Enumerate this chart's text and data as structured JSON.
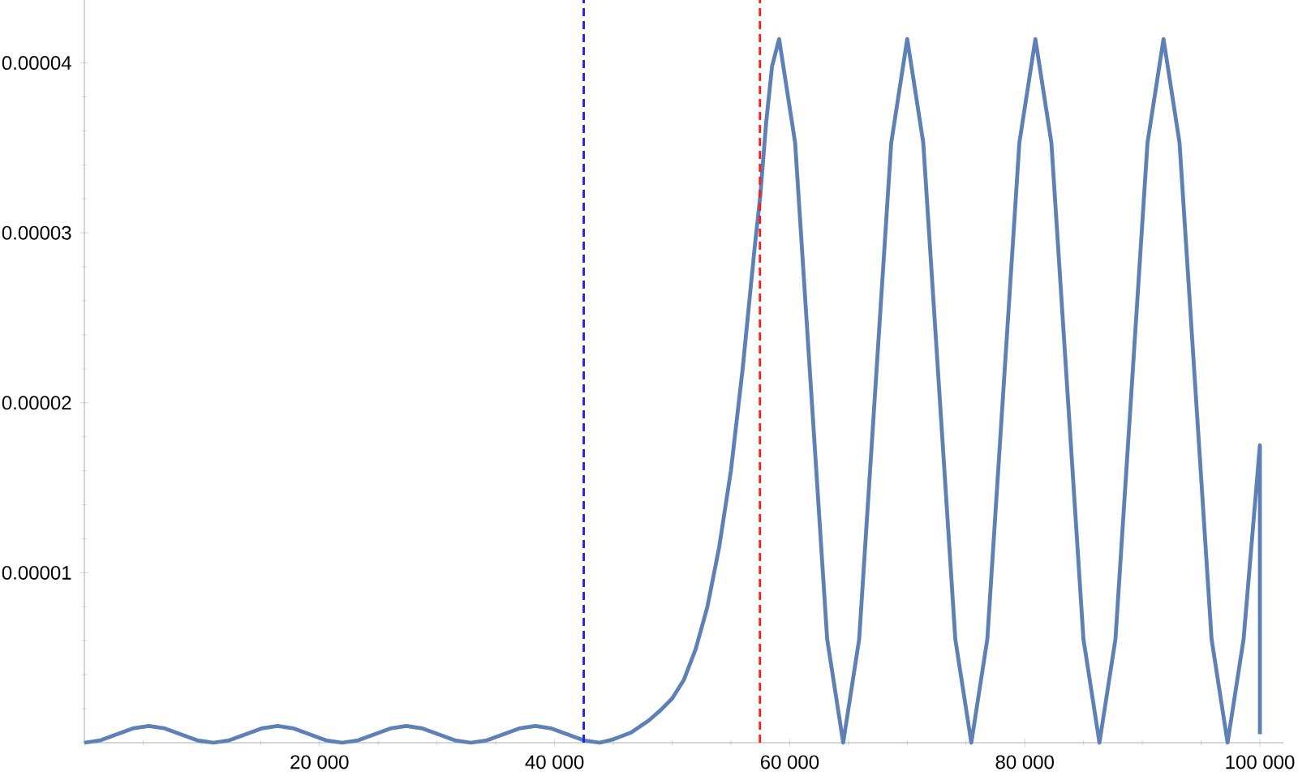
{
  "chart_data": {
    "type": "line",
    "xlim": [
      0,
      102000
    ],
    "ylim": [
      0,
      4.37e-05
    ],
    "xticks": [
      {
        "value": 0,
        "label": null
      },
      {
        "value": 20000,
        "label": "20 000"
      },
      {
        "value": 40000,
        "label": "40 000"
      },
      {
        "value": 60000,
        "label": "60 000"
      },
      {
        "value": 80000,
        "label": "80 000"
      },
      {
        "value": 100000,
        "label": "100 000"
      }
    ],
    "yticks": [
      {
        "value": 0,
        "label": null
      },
      {
        "value": 1e-05,
        "label": "0.00001"
      },
      {
        "value": 2e-05,
        "label": "0.00002"
      },
      {
        "value": 3e-05,
        "label": "0.00003"
      },
      {
        "value": 4e-05,
        "label": "0.00004"
      }
    ],
    "x": [
      0,
      1370,
      2740,
      4110,
      5480,
      6850,
      8220,
      9590,
      10960,
      12330,
      13700,
      15070,
      16440,
      17810,
      19180,
      20550,
      21920,
      23290,
      24660,
      26030,
      27400,
      28770,
      30140,
      31510,
      32880,
      34250,
      35620,
      36990,
      38360,
      39730,
      41100,
      42470,
      43840,
      45000,
      46500,
      48000,
      49000,
      50000,
      51000,
      52000,
      53000,
      54000,
      55000,
      56000,
      57000,
      57500,
      58000,
      58500,
      59100,
      60463,
      61825,
      63188,
      64550,
      65913,
      67275,
      68638,
      70000,
      71363,
      72725,
      74088,
      75450,
      76813,
      78175,
      79538,
      80900,
      82263,
      83625,
      84988,
      86350,
      87713,
      89075,
      90438,
      91800,
      93163,
      94525,
      95888,
      97250,
      98613,
      100000,
      100000
    ],
    "series": [
      {
        "color": "#5e81b5",
        "values": [
          0,
          1.4e-07,
          4.9e-07,
          8.4e-07,
          9.8e-07,
          8.4e-07,
          4.9e-07,
          1.4e-07,
          0,
          1.4e-07,
          4.9e-07,
          8.4e-07,
          9.8e-07,
          8.4e-07,
          4.9e-07,
          1.4e-07,
          0,
          1.4e-07,
          4.9e-07,
          8.4e-07,
          9.8e-07,
          8.4e-07,
          4.9e-07,
          1.4e-07,
          0,
          1.4e-07,
          4.9e-07,
          8.4e-07,
          9.8e-07,
          8.4e-07,
          4.9e-07,
          1.4e-07,
          0,
          2e-07,
          6e-07,
          1.3e-06,
          1.9e-06,
          2.6e-06,
          3.7e-06,
          5.5e-06,
          8e-06,
          1.15e-05,
          1.6e-05,
          2.2e-05,
          2.9e-05,
          3.22e-05,
          3.65e-05,
          3.98e-05,
          4.14e-05,
          3.53e-05,
          2.07e-05,
          6.1e-06,
          0,
          6.1e-06,
          2.07e-05,
          3.53e-05,
          4.14e-05,
          3.53e-05,
          2.07e-05,
          6.1e-06,
          0,
          6.1e-06,
          2.07e-05,
          3.53e-05,
          4.14e-05,
          3.53e-05,
          2.07e-05,
          6.1e-06,
          0,
          6.1e-06,
          2.07e-05,
          3.53e-05,
          4.14e-05,
          3.53e-05,
          2.07e-05,
          6.1e-06,
          0,
          6.1e-06,
          1.75e-05,
          5e-07
        ]
      }
    ],
    "ref_lines": [
      {
        "axis": "x",
        "value": 42480,
        "color": "#1a1aff",
        "line_style": "dashed"
      },
      {
        "axis": "x",
        "value": 57470,
        "color": "#ff1a1a",
        "line_style": "dashed"
      }
    ]
  }
}
